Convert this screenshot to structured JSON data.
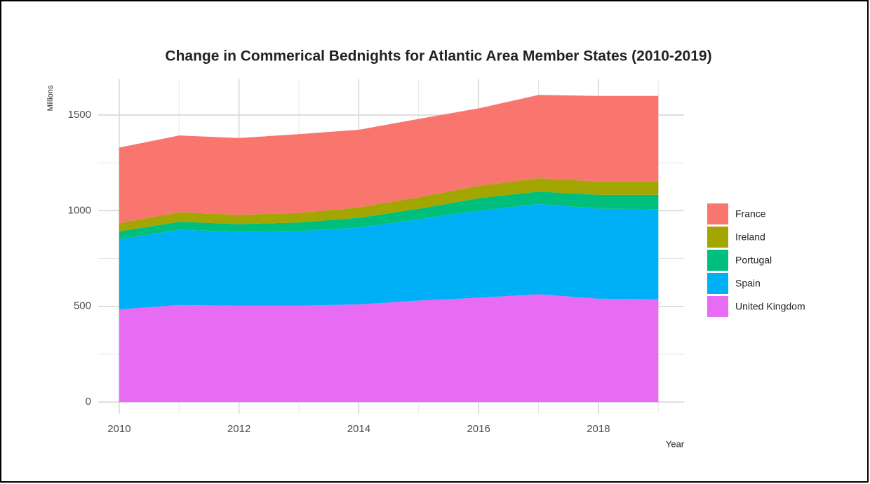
{
  "chart_data": {
    "type": "stacked_area",
    "title": "Change in Commerical Bednights for Atlantic Area Member States (2010-2019)",
    "x_label": "Year",
    "y_label": "Millions",
    "x": [
      2010,
      2011,
      2012,
      2013,
      2014,
      2015,
      2016,
      2017,
      2018,
      2019
    ],
    "series": [
      {
        "name": "France",
        "color": "#F8766D",
        "values": [
          395,
          401,
          402,
          412,
          406,
          410,
          405,
          435,
          448,
          448
        ]
      },
      {
        "name": "Ireland",
        "color": "#A3A500",
        "values": [
          43,
          50,
          48,
          50,
          54,
          60,
          65,
          70,
          69,
          69
        ]
      },
      {
        "name": "Portugal",
        "color": "#00BF7D",
        "values": [
          42,
          42,
          40,
          45,
          51,
          55,
          65,
          65,
          73,
          75
        ]
      },
      {
        "name": "Spain",
        "color": "#00B0F6",
        "values": [
          366,
          393,
          387,
          390,
          402,
          425,
          455,
          472,
          470,
          471
        ]
      },
      {
        "name": "United Kingdom",
        "color": "#E76BF3",
        "values": [
          484,
          507,
          503,
          503,
          510,
          530,
          545,
          563,
          540,
          537
        ]
      }
    ],
    "xlim": [
      2009.65,
      2019.43
    ],
    "ylim": [
      -62,
      1687
    ],
    "xticks": [
      2010,
      2012,
      2014,
      2016,
      2018
    ],
    "yticks": [
      0,
      500,
      1000,
      1500
    ],
    "x_minor_ticks": [
      2011,
      2013,
      2015,
      2017,
      2019
    ],
    "y_minor_ticks": [
      250,
      750,
      1250
    ],
    "grid": true,
    "legend": "right"
  }
}
